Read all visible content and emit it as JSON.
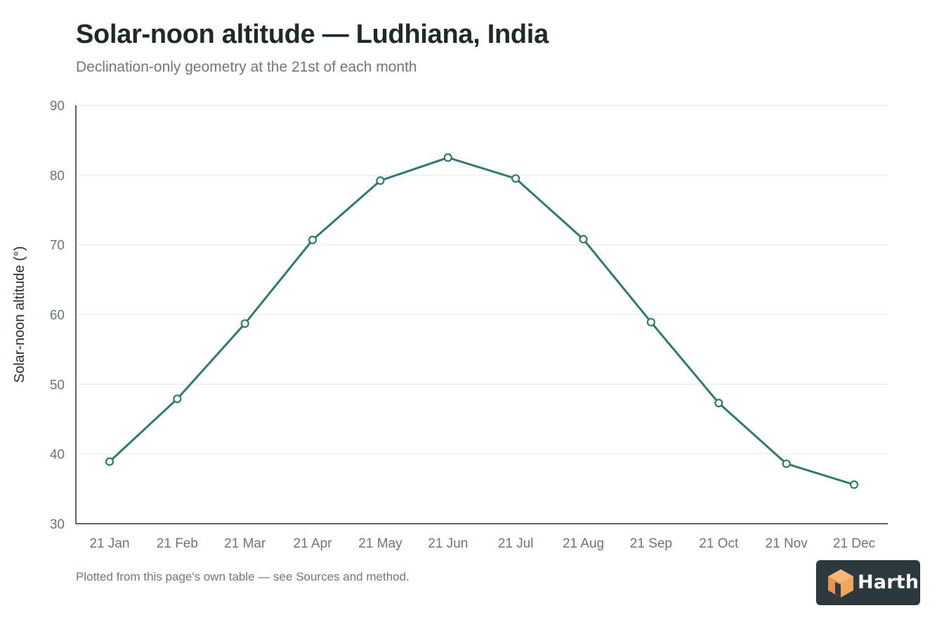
{
  "title": "Solar-noon altitude — Ludhiana, India",
  "subtitle": "Declination-only geometry at the 21st of each month",
  "footnote": "Plotted from this page's own table — see Sources and method.",
  "brand": {
    "name": "Harth",
    "icon": "cube-logo-icon"
  },
  "colors": {
    "line": "#2f7a6f",
    "axis": "#2b3533",
    "grid": "#e6e9e8",
    "brand_bg": "#2c3a3f",
    "brand_cube": "#f2a65a"
  },
  "chart_data": {
    "type": "line",
    "title": "Solar-noon altitude — Ludhiana, India",
    "subtitle": "Declination-only geometry at the 21st of each month",
    "xlabel": "",
    "ylabel": "Solar-noon altitude (°)",
    "ylim": [
      30,
      90
    ],
    "yticks": [
      30,
      40,
      50,
      60,
      70,
      80,
      90
    ],
    "grid": true,
    "categories": [
      "21 Jan",
      "21 Feb",
      "21 Mar",
      "21 Apr",
      "21 May",
      "21 Jun",
      "21 Jul",
      "21 Aug",
      "21 Sep",
      "21 Oct",
      "21 Nov",
      "21 Dec"
    ],
    "series": [
      {
        "values": [
          38.9,
          47.9,
          58.7,
          70.7,
          79.2,
          82.5,
          79.5,
          70.8,
          58.9,
          47.3,
          38.6,
          35.6
        ]
      }
    ]
  }
}
